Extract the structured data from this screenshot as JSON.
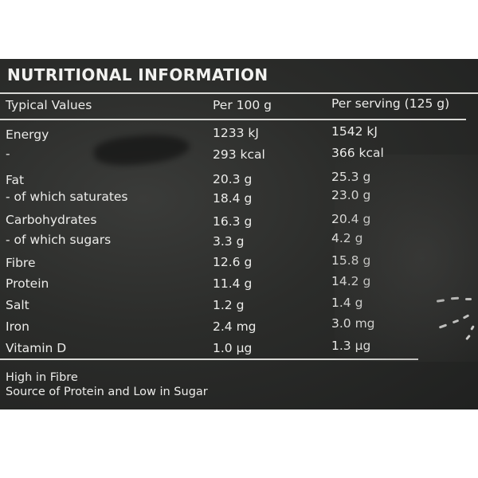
{
  "title": "NUTRITIONAL INFORMATION",
  "headers": {
    "label": "Typical Values",
    "per100": "Per 100 g",
    "perServing": "Per serving (125 g)"
  },
  "rows": [
    {
      "label": "Energy",
      "per100": "1233 kJ",
      "perServing": "1542 kJ"
    },
    {
      "label": "-",
      "per100": "293 kcal",
      "perServing": "366 kcal"
    },
    {
      "label": "Fat",
      "per100": "20.3 g",
      "perServing": "25.3 g"
    },
    {
      "label": "- of which saturates",
      "per100": "18.4 g",
      "perServing": "23.0 g"
    },
    {
      "label": "Carbohydrates",
      "per100": "16.3 g",
      "perServing": "20.4 g"
    },
    {
      "label": "- of which sugars",
      "per100": "3.3 g",
      "perServing": "4.2 g"
    },
    {
      "label": "Fibre",
      "per100": "12.6 g",
      "perServing": "15.8 g"
    },
    {
      "label": "Protein",
      "per100": "11.4 g",
      "perServing": "14.2 g"
    },
    {
      "label": "Salt",
      "per100": "1.2 g",
      "perServing": "1.4 g"
    },
    {
      "label": "Iron",
      "per100": "2.4 mg",
      "perServing": "3.0 mg"
    },
    {
      "label": "Vitamin D",
      "per100": "1.0 µg",
      "perServing": "1.3 µg"
    }
  ],
  "claims": [
    "High in Fibre",
    "Source of Protein and Low in Sugar"
  ]
}
